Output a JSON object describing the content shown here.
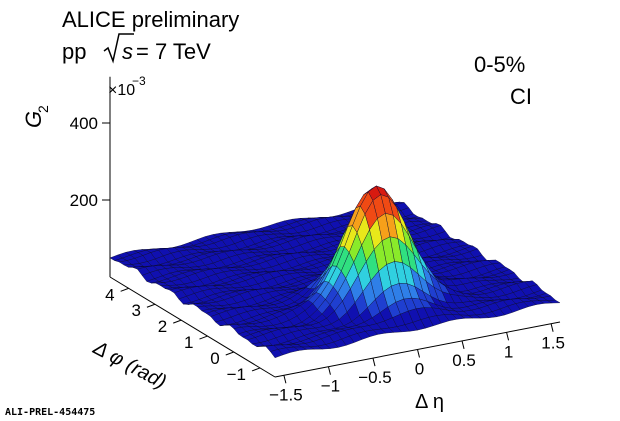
{
  "header": {
    "experiment": "ALICE preliminary",
    "system_prefix": "pp",
    "sqrt_s": "s",
    "energy": "= 7 TeV"
  },
  "annotations": {
    "centrality": "0-5%",
    "component": "CI",
    "figure_id": "ALI-PREL-454475"
  },
  "chart_data": {
    "type": "surface3d",
    "title": "",
    "zlabel": "G",
    "zlabel_sub": "2",
    "zscale_note": "×10",
    "zscale_exp": "−3",
    "xlabel": "Δ η",
    "ylabel": "Δ φ (rad)",
    "x_ticks": [
      "−1.5",
      "−1",
      "−0.5",
      "0",
      "0.5",
      "1",
      "1.5"
    ],
    "y_ticks": [
      "−1",
      "0",
      "1",
      "2",
      "3",
      "4"
    ],
    "z_ticks": [
      "200",
      "400"
    ],
    "xlim": [
      -1.6,
      1.6
    ],
    "ylim": [
      -1.57,
      4.71
    ],
    "zlim": [
      0,
      520
    ],
    "peak": {
      "x": 0,
      "y": 0,
      "z": 360
    },
    "baseline_z": 55,
    "colormap": [
      "#1010b0",
      "#1f3fd0",
      "#2f7fe8",
      "#30d0e0",
      "#30e080",
      "#8aea2a",
      "#e8e81a",
      "#f6a01a",
      "#f04a14",
      "#d81a10"
    ]
  }
}
